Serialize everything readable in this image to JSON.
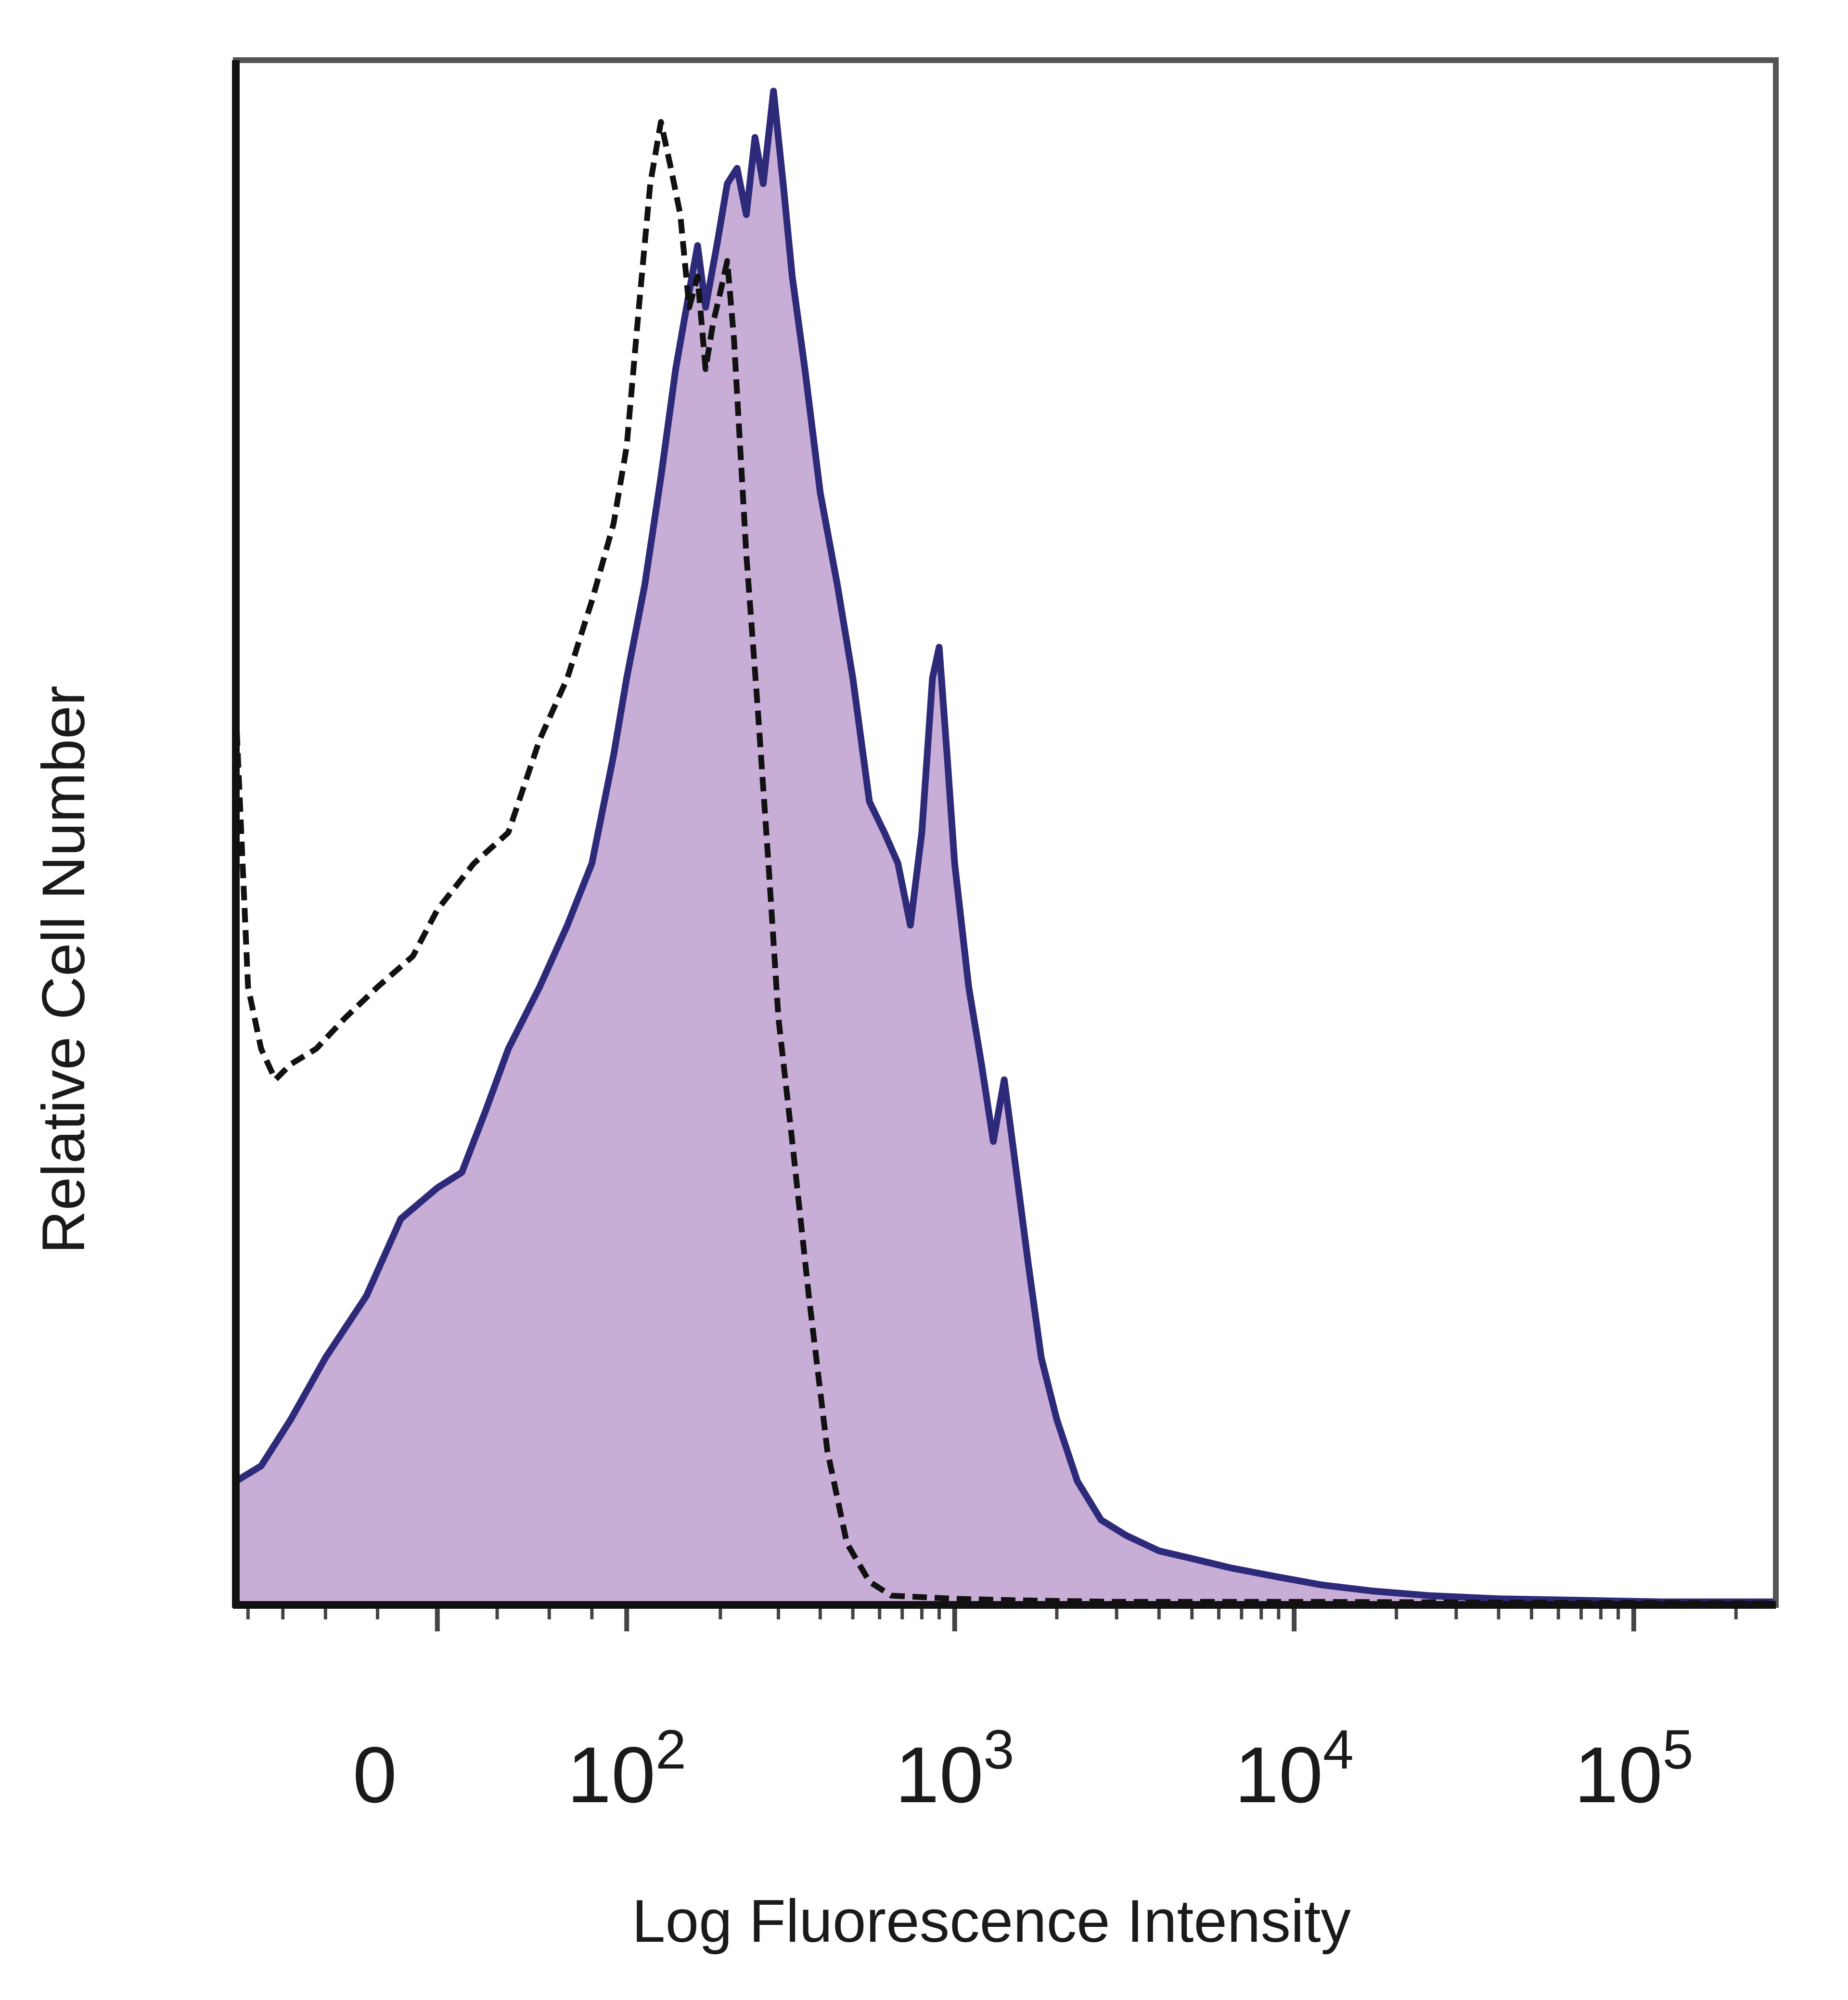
{
  "chart_data": {
    "type": "area",
    "xlabel": "Log Fluorescence Intensity",
    "ylabel": "Relative Cell Number",
    "x_scale": "biexponential",
    "x_ticks": [
      {
        "value": 0,
        "base": "0",
        "exp": ""
      },
      {
        "value": 100,
        "base": "10",
        "exp": "2"
      },
      {
        "value": 1000,
        "base": "10",
        "exp": "3"
      },
      {
        "value": 10000,
        "base": "10",
        "exp": "4"
      },
      {
        "value": 100000,
        "base": "10",
        "exp": "5"
      }
    ],
    "xlim": [
      -110,
      262000
    ],
    "ylim": [
      0,
      100
    ],
    "grid": false,
    "legend": "none",
    "colors": {
      "stained_fill": "#c8add7",
      "stained_line": "#2e2a7a",
      "isotype_line": "#111111",
      "frame": "#555555"
    },
    "series": [
      {
        "style": "filled-solid",
        "x": [
          -110,
          -90,
          -70,
          -50,
          -30,
          -15,
          0,
          10,
          20,
          30,
          45,
          60,
          75,
          90,
          100,
          115,
          130,
          145,
          160,
          170,
          180,
          195,
          210,
          225,
          240,
          255,
          270,
          290,
          310,
          330,
          360,
          400,
          450,
          500,
          560,
          620,
          680,
          740,
          800,
          860,
          900,
          950,
          1000,
          1100,
          1200,
          1300,
          1400,
          1500,
          1650,
          1800,
          2000,
          2300,
          2700,
          3200,
          4000,
          5000,
          6500,
          9000,
          12000,
          17000,
          25000,
          40000,
          70000,
          120000,
          262000
        ],
        "y": [
          8,
          9,
          12,
          16,
          20,
          25,
          27,
          28,
          32,
          36,
          40,
          44,
          48,
          55,
          60,
          66,
          73,
          80,
          85,
          88,
          84,
          88,
          92,
          93,
          90,
          95,
          92,
          98,
          92,
          86,
          80,
          72,
          66,
          60,
          52,
          50,
          48,
          44,
          50,
          60,
          62,
          55,
          48,
          40,
          35,
          30,
          34,
          29,
          22,
          16,
          12,
          8,
          5.5,
          4.5,
          3.5,
          3,
          2.4,
          1.8,
          1.3,
          0.9,
          0.6,
          0.4,
          0.3,
          0.2,
          0.2
        ]
      },
      {
        "style": "dashed",
        "x": [
          -110,
          -100,
          -90,
          -80,
          -70,
          -55,
          -40,
          -25,
          -10,
          0,
          15,
          30,
          45,
          60,
          75,
          90,
          100,
          110,
          120,
          130,
          140,
          150,
          160,
          170,
          180,
          190,
          200,
          210,
          220,
          240,
          260,
          280,
          300,
          330,
          370,
          420,
          480,
          560,
          650,
          800,
          1000,
          1500,
          3000,
          10000,
          262000
        ],
        "y": [
          58,
          40,
          36,
          34,
          35,
          36,
          38,
          40,
          42,
          45,
          48,
          50,
          56,
          60,
          65,
          70,
          75,
          84,
          92,
          96,
          93,
          90,
          84,
          86,
          80,
          83,
          85,
          87,
          82,
          68,
          58,
          48,
          38,
          30,
          20,
          10,
          4,
          1.5,
          0.6,
          0.5,
          0.4,
          0.3,
          0.2,
          0.2,
          0.1
        ]
      }
    ]
  }
}
